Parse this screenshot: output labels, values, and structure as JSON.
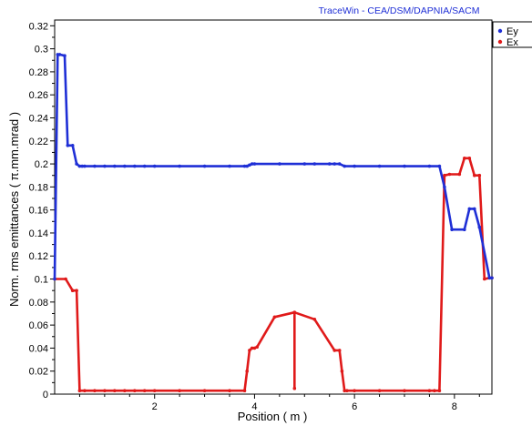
{
  "header": {
    "brand": "TraceWin - CEA/DSM/DAPNIA/SACM"
  },
  "colors": {
    "brand": "#1f2fd6",
    "Ey": "#1f2fd6",
    "Ex": "#e01a1a"
  },
  "chart_data": {
    "type": "line",
    "title": "",
    "xlabel": "Position ( m )",
    "ylabel": "Norm. rms emittances ( π.mm.mrad )",
    "xlim": [
      0,
      8.75
    ],
    "ylim": [
      0,
      0.325
    ],
    "xticks": [
      2,
      4,
      6,
      8
    ],
    "xtick_labels": [
      "2",
      "4",
      "6",
      "8"
    ],
    "yticks": [
      0,
      0.02,
      0.04,
      0.06,
      0.08,
      0.1,
      0.12,
      0.14,
      0.16,
      0.18,
      0.2,
      0.22,
      0.24,
      0.26,
      0.28,
      0.3,
      0.32
    ],
    "ytick_labels": [
      "0",
      "0.02",
      "0.04",
      "0.06",
      "0.08",
      "0.1",
      "0.12",
      "0.14",
      "0.16",
      "0.18",
      "0.2",
      "0.22",
      "0.24",
      "0.26",
      "0.28",
      "0.3",
      "0.32"
    ],
    "grid": false,
    "legend_position": "outside-top-right",
    "series": [
      {
        "name": "Ey",
        "color": "#1f2fd6",
        "x": [
          0.0,
          0.06,
          0.1,
          0.2,
          0.26,
          0.36,
          0.44,
          0.5,
          0.55,
          0.6,
          0.8,
          1.0,
          1.2,
          1.4,
          1.6,
          1.8,
          2.0,
          2.5,
          3.0,
          3.5,
          3.8,
          3.85,
          3.9,
          3.95,
          4.0,
          4.5,
          5.0,
          5.2,
          5.5,
          5.6,
          5.7,
          5.8,
          6.0,
          6.5,
          7.0,
          7.5,
          7.7,
          7.8,
          7.95,
          8.2,
          8.3,
          8.4,
          8.5,
          8.7,
          8.75
        ],
        "y": [
          0.1,
          0.295,
          0.295,
          0.294,
          0.216,
          0.216,
          0.2,
          0.198,
          0.198,
          0.198,
          0.198,
          0.198,
          0.198,
          0.198,
          0.198,
          0.198,
          0.198,
          0.198,
          0.198,
          0.198,
          0.198,
          0.198,
          0.199,
          0.2,
          0.2,
          0.2,
          0.2,
          0.2,
          0.2,
          0.2,
          0.2,
          0.198,
          0.198,
          0.198,
          0.198,
          0.198,
          0.198,
          0.18,
          0.143,
          0.143,
          0.161,
          0.161,
          0.145,
          0.101,
          0.101
        ]
      },
      {
        "name": "Ex",
        "color": "#e01a1a",
        "x": [
          0.0,
          0.22,
          0.36,
          0.44,
          0.5,
          0.6,
          0.8,
          1.0,
          1.2,
          1.4,
          1.6,
          1.8,
          2.0,
          2.5,
          3.0,
          3.5,
          3.8,
          3.85,
          3.9,
          3.95,
          4.0,
          4.05,
          4.4,
          4.8,
          4.8,
          4.8,
          5.2,
          5.6,
          5.7,
          5.75,
          5.8,
          5.85,
          6.0,
          6.5,
          7.0,
          7.5,
          7.6,
          7.7,
          7.8,
          7.9,
          8.1,
          8.2,
          8.3,
          8.4,
          8.5,
          8.6,
          8.7,
          8.75
        ],
        "y": [
          0.1,
          0.1,
          0.09,
          0.09,
          0.003,
          0.003,
          0.003,
          0.003,
          0.003,
          0.003,
          0.003,
          0.003,
          0.003,
          0.003,
          0.003,
          0.003,
          0.003,
          0.02,
          0.038,
          0.04,
          0.04,
          0.041,
          0.067,
          0.071,
          0.005,
          0.071,
          0.065,
          0.038,
          0.038,
          0.02,
          0.003,
          0.003,
          0.003,
          0.003,
          0.003,
          0.003,
          0.003,
          0.003,
          0.19,
          0.191,
          0.191,
          0.205,
          0.205,
          0.19,
          0.19,
          0.1,
          0.101,
          0.101
        ]
      }
    ]
  }
}
